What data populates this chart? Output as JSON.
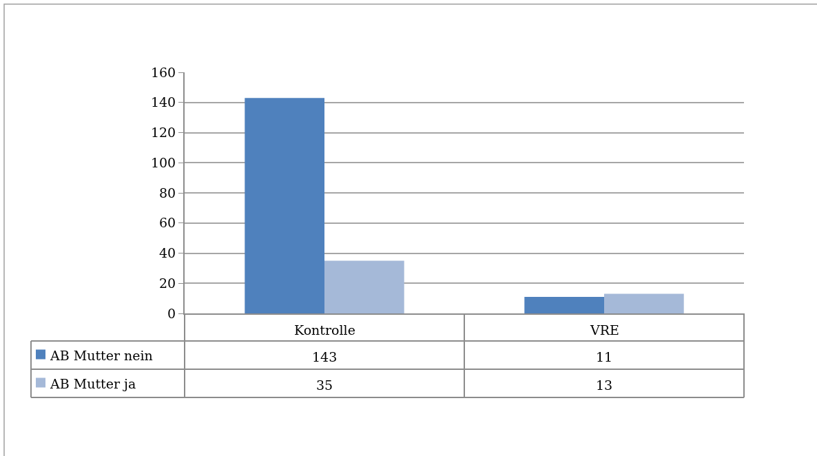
{
  "chart_data": {
    "type": "bar",
    "categories": [
      "Kontrolle",
      "VRE"
    ],
    "series": [
      {
        "name": "AB Mutter nein",
        "color": "#4f81bd",
        "values": [
          143,
          11
        ]
      },
      {
        "name": "AB Mutter ja",
        "color": "#a5b9d8",
        "values": [
          35,
          13
        ]
      }
    ],
    "ylim": [
      0,
      160
    ],
    "yticks": [
      0,
      20,
      40,
      60,
      80,
      100,
      120,
      140,
      160
    ],
    "grid": "y",
    "legend": "bottom",
    "data_labels": true
  }
}
